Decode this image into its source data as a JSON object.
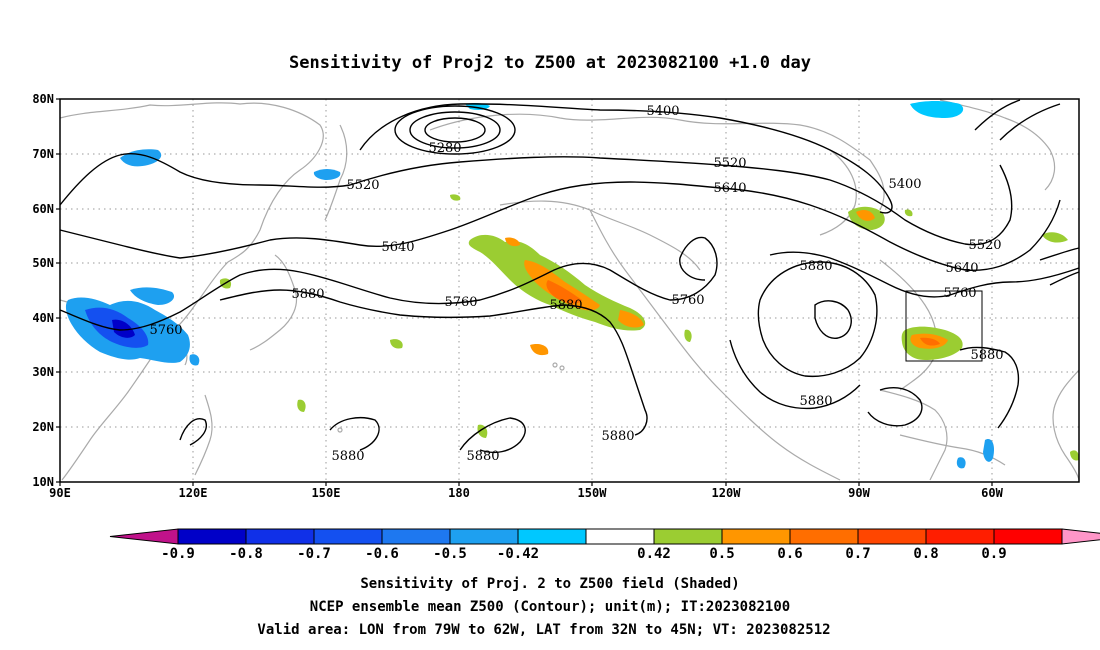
{
  "title": "Sensitivity of Proj2 to Z500 at 2023082100 +1.0 day",
  "map": {
    "lat_labels": [
      "80N",
      "70N",
      "60N",
      "50N",
      "40N",
      "30N",
      "20N",
      "10N"
    ],
    "lon_labels": [
      "90E",
      "120E",
      "150E",
      "180",
      "150W",
      "120W",
      "90W",
      "60W"
    ],
    "contour_labels": [
      {
        "text": "5400",
        "id": "c5400a"
      },
      {
        "text": "5280",
        "id": "c5280"
      },
      {
        "text": "5520",
        "id": "c5520a"
      },
      {
        "text": "5520",
        "id": "c5520b"
      },
      {
        "text": "5640",
        "id": "c5640a"
      },
      {
        "text": "5400",
        "id": "c5400b"
      },
      {
        "text": "5520",
        "id": "c5520c"
      },
      {
        "text": "5640",
        "id": "c5640b"
      },
      {
        "text": "5640",
        "id": "c5640c"
      },
      {
        "text": "5880",
        "id": "c5880a"
      },
      {
        "text": "5760",
        "id": "c5760a"
      },
      {
        "text": "5760",
        "id": "c5760b"
      },
      {
        "text": "5880",
        "id": "c5880b"
      },
      {
        "text": "5760",
        "id": "c5760c"
      },
      {
        "text": "5880",
        "id": "c5880c"
      },
      {
        "text": "5760",
        "id": "c5760d"
      },
      {
        "text": "5880",
        "id": "c5880d"
      },
      {
        "text": "5880",
        "id": "c5880e"
      },
      {
        "text": "5880",
        "id": "c5880f"
      },
      {
        "text": "5880",
        "id": "c5880g"
      },
      {
        "text": "5880",
        "id": "c5880h"
      }
    ],
    "colors": {
      "neg_magenta": "#c0128a",
      "neg_09": "#0000c8",
      "neg_08": "#1030e8",
      "neg_07": "#1450f0",
      "neg_06": "#1e78f0",
      "neg_05": "#1ea0f0",
      "neg_042": "#00c8ff",
      "pos_042": "#9bcd32",
      "pos_05": "#ff9600",
      "pos_06": "#ff6e00",
      "pos_07": "#ff4600",
      "pos_08": "#ff1e00",
      "pos_09": "#ff0000",
      "pos_pink": "#ff96c8",
      "land": "#aaaaaa",
      "grid": "#999999"
    }
  },
  "colorbar": {
    "labels": [
      "-0.9",
      "-0.8",
      "-0.7",
      "-0.6",
      "-0.5",
      "-0.42",
      "0.42",
      "0.5",
      "0.6",
      "0.7",
      "0.8",
      "0.9"
    ]
  },
  "footer": {
    "line1": "Sensitivity of Proj. 2 to Z500 field (Shaded)",
    "line2": "NCEP ensemble mean Z500 (Contour); unit(m); IT:2023082100",
    "line3": "Valid area: LON from 79W to 62W, LAT from 32N to 45N; VT: 2023082512"
  }
}
